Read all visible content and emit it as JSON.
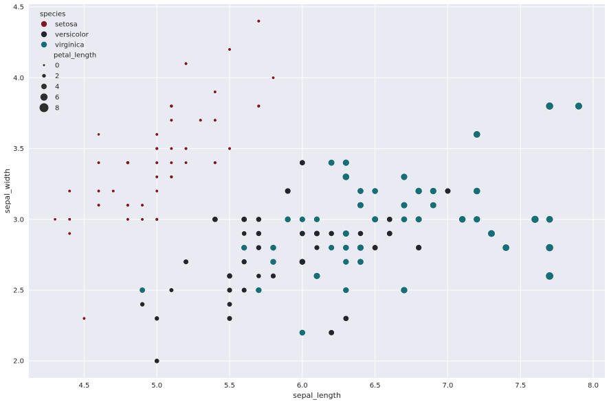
{
  "chart_data": {
    "type": "scatter",
    "xlabel": "sepal_length",
    "ylabel": "sepal_width",
    "xlim": [
      4.12,
      8.08
    ],
    "ylim": [
      1.88,
      4.52
    ],
    "xticks": [
      "4.5",
      "5.0",
      "5.5",
      "6.0",
      "6.5",
      "7.0",
      "7.5",
      "8.0"
    ],
    "yticks": [
      "2.0",
      "2.5",
      "3.0",
      "3.5",
      "4.0",
      "4.5"
    ],
    "grid": true,
    "background": "#eaeaf2",
    "legend": {
      "placement": "top-left",
      "hue_title": "species",
      "size_title": "petal_length",
      "size_entries": [
        "0",
        "2",
        "4",
        "6",
        "8"
      ]
    },
    "series": [
      {
        "name": "setosa",
        "color": "#7b1a23",
        "points": [
          {
            "x": 4.3,
            "y": 3.0,
            "s": 1.1
          },
          {
            "x": 4.4,
            "y": 2.9,
            "s": 1.4
          },
          {
            "x": 4.4,
            "y": 3.0,
            "s": 1.3
          },
          {
            "x": 4.4,
            "y": 3.2,
            "s": 1.3
          },
          {
            "x": 4.5,
            "y": 2.3,
            "s": 1.3
          },
          {
            "x": 4.6,
            "y": 3.1,
            "s": 1.5
          },
          {
            "x": 4.6,
            "y": 3.2,
            "s": 1.4
          },
          {
            "x": 4.6,
            "y": 3.4,
            "s": 1.4
          },
          {
            "x": 4.6,
            "y": 3.6,
            "s": 1.0
          },
          {
            "x": 4.7,
            "y": 3.2,
            "s": 1.3
          },
          {
            "x": 4.8,
            "y": 3.0,
            "s": 1.4
          },
          {
            "x": 4.8,
            "y": 3.1,
            "s": 1.6
          },
          {
            "x": 4.8,
            "y": 3.4,
            "s": 1.9
          },
          {
            "x": 4.9,
            "y": 3.0,
            "s": 1.4
          },
          {
            "x": 4.9,
            "y": 3.1,
            "s": 1.5
          },
          {
            "x": 5.0,
            "y": 3.0,
            "s": 1.6
          },
          {
            "x": 5.0,
            "y": 3.2,
            "s": 1.2
          },
          {
            "x": 5.0,
            "y": 3.3,
            "s": 1.4
          },
          {
            "x": 5.0,
            "y": 3.4,
            "s": 1.5
          },
          {
            "x": 5.0,
            "y": 3.5,
            "s": 1.6
          },
          {
            "x": 5.0,
            "y": 3.6,
            "s": 1.4
          },
          {
            "x": 5.1,
            "y": 3.3,
            "s": 1.7
          },
          {
            "x": 5.1,
            "y": 3.4,
            "s": 1.5
          },
          {
            "x": 5.1,
            "y": 3.5,
            "s": 1.4
          },
          {
            "x": 5.1,
            "y": 3.7,
            "s": 1.5
          },
          {
            "x": 5.1,
            "y": 3.8,
            "s": 1.9
          },
          {
            "x": 5.2,
            "y": 3.4,
            "s": 1.4
          },
          {
            "x": 5.2,
            "y": 3.5,
            "s": 1.5
          },
          {
            "x": 5.2,
            "y": 4.1,
            "s": 1.5
          },
          {
            "x": 5.3,
            "y": 3.7,
            "s": 1.5
          },
          {
            "x": 5.4,
            "y": 3.4,
            "s": 1.7
          },
          {
            "x": 5.4,
            "y": 3.7,
            "s": 1.5
          },
          {
            "x": 5.4,
            "y": 3.9,
            "s": 1.3
          },
          {
            "x": 5.5,
            "y": 3.5,
            "s": 1.3
          },
          {
            "x": 5.5,
            "y": 4.2,
            "s": 1.4
          },
          {
            "x": 5.7,
            "y": 3.8,
            "s": 1.7
          },
          {
            "x": 5.7,
            "y": 4.4,
            "s": 1.5
          },
          {
            "x": 5.8,
            "y": 4.0,
            "s": 1.2
          }
        ]
      },
      {
        "name": "versicolor",
        "color": "#22262f",
        "points": [
          {
            "x": 4.9,
            "y": 2.4,
            "s": 3.3
          },
          {
            "x": 5.0,
            "y": 2.0,
            "s": 3.5
          },
          {
            "x": 5.0,
            "y": 2.3,
            "s": 3.3
          },
          {
            "x": 5.1,
            "y": 2.5,
            "s": 3.0
          },
          {
            "x": 5.2,
            "y": 2.7,
            "s": 3.9
          },
          {
            "x": 5.4,
            "y": 3.0,
            "s": 4.5
          },
          {
            "x": 5.5,
            "y": 2.3,
            "s": 4.0
          },
          {
            "x": 5.5,
            "y": 2.4,
            "s": 3.7
          },
          {
            "x": 5.5,
            "y": 2.5,
            "s": 4.0
          },
          {
            "x": 5.5,
            "y": 2.6,
            "s": 4.4
          },
          {
            "x": 5.6,
            "y": 2.5,
            "s": 3.9
          },
          {
            "x": 5.6,
            "y": 2.7,
            "s": 4.2
          },
          {
            "x": 5.6,
            "y": 2.9,
            "s": 3.6
          },
          {
            "x": 5.6,
            "y": 3.0,
            "s": 4.5
          },
          {
            "x": 5.7,
            "y": 2.6,
            "s": 3.5
          },
          {
            "x": 5.7,
            "y": 2.8,
            "s": 4.1
          },
          {
            "x": 5.7,
            "y": 2.9,
            "s": 4.2
          },
          {
            "x": 5.7,
            "y": 3.0,
            "s": 4.2
          },
          {
            "x": 5.8,
            "y": 2.6,
            "s": 4.0
          },
          {
            "x": 5.8,
            "y": 2.7,
            "s": 4.1
          },
          {
            "x": 5.9,
            "y": 3.2,
            "s": 4.8
          },
          {
            "x": 6.0,
            "y": 2.7,
            "s": 5.1
          },
          {
            "x": 6.0,
            "y": 2.9,
            "s": 4.5
          },
          {
            "x": 6.0,
            "y": 3.4,
            "s": 4.5
          },
          {
            "x": 6.1,
            "y": 2.8,
            "s": 4.0
          },
          {
            "x": 6.1,
            "y": 2.9,
            "s": 4.7
          },
          {
            "x": 6.1,
            "y": 3.0,
            "s": 4.6
          },
          {
            "x": 6.2,
            "y": 2.2,
            "s": 4.5
          },
          {
            "x": 6.2,
            "y": 2.9,
            "s": 4.3
          },
          {
            "x": 6.3,
            "y": 2.3,
            "s": 4.4
          },
          {
            "x": 6.3,
            "y": 2.5,
            "s": 4.9
          },
          {
            "x": 6.3,
            "y": 3.3,
            "s": 4.7
          },
          {
            "x": 6.4,
            "y": 2.9,
            "s": 4.3
          },
          {
            "x": 6.4,
            "y": 3.2,
            "s": 4.5
          },
          {
            "x": 6.5,
            "y": 2.8,
            "s": 4.6
          },
          {
            "x": 6.6,
            "y": 2.9,
            "s": 4.6
          },
          {
            "x": 6.6,
            "y": 3.0,
            "s": 4.4
          },
          {
            "x": 6.7,
            "y": 3.1,
            "s": 4.4
          },
          {
            "x": 6.8,
            "y": 2.8,
            "s": 4.8
          },
          {
            "x": 7.0,
            "y": 3.2,
            "s": 4.7
          }
        ]
      },
      {
        "name": "virginica",
        "color": "#176e76",
        "points": [
          {
            "x": 4.9,
            "y": 2.5,
            "s": 4.5
          },
          {
            "x": 5.6,
            "y": 2.8,
            "s": 4.9
          },
          {
            "x": 5.7,
            "y": 2.5,
            "s": 5.0
          },
          {
            "x": 5.8,
            "y": 2.7,
            "s": 5.1
          },
          {
            "x": 5.8,
            "y": 2.8,
            "s": 5.1
          },
          {
            "x": 5.9,
            "y": 3.0,
            "s": 5.1
          },
          {
            "x": 6.0,
            "y": 2.2,
            "s": 5.0
          },
          {
            "x": 6.0,
            "y": 3.0,
            "s": 4.8
          },
          {
            "x": 6.1,
            "y": 2.6,
            "s": 5.6
          },
          {
            "x": 6.1,
            "y": 3.0,
            "s": 4.9
          },
          {
            "x": 6.2,
            "y": 2.8,
            "s": 4.8
          },
          {
            "x": 6.2,
            "y": 3.4,
            "s": 5.4
          },
          {
            "x": 6.3,
            "y": 2.5,
            "s": 5.0
          },
          {
            "x": 6.3,
            "y": 2.7,
            "s": 4.9
          },
          {
            "x": 6.3,
            "y": 2.8,
            "s": 5.1
          },
          {
            "x": 6.3,
            "y": 2.9,
            "s": 5.6
          },
          {
            "x": 6.3,
            "y": 3.3,
            "s": 6.0
          },
          {
            "x": 6.3,
            "y": 3.4,
            "s": 5.6
          },
          {
            "x": 6.4,
            "y": 2.7,
            "s": 5.3
          },
          {
            "x": 6.4,
            "y": 2.8,
            "s": 5.6
          },
          {
            "x": 6.4,
            "y": 3.1,
            "s": 5.5
          },
          {
            "x": 6.4,
            "y": 3.2,
            "s": 5.3
          },
          {
            "x": 6.5,
            "y": 3.0,
            "s": 5.5
          },
          {
            "x": 6.5,
            "y": 3.2,
            "s": 5.1
          },
          {
            "x": 6.7,
            "y": 2.5,
            "s": 5.8
          },
          {
            "x": 6.7,
            "y": 3.0,
            "s": 5.2
          },
          {
            "x": 6.7,
            "y": 3.1,
            "s": 5.6
          },
          {
            "x": 6.7,
            "y": 3.3,
            "s": 5.7
          },
          {
            "x": 6.8,
            "y": 3.0,
            "s": 5.5
          },
          {
            "x": 6.8,
            "y": 3.2,
            "s": 5.9
          },
          {
            "x": 6.9,
            "y": 3.1,
            "s": 5.4
          },
          {
            "x": 6.9,
            "y": 3.2,
            "s": 5.7
          },
          {
            "x": 7.1,
            "y": 3.0,
            "s": 5.9
          },
          {
            "x": 7.2,
            "y": 3.0,
            "s": 5.8
          },
          {
            "x": 7.2,
            "y": 3.2,
            "s": 6.0
          },
          {
            "x": 7.2,
            "y": 3.6,
            "s": 6.1
          },
          {
            "x": 7.3,
            "y": 2.9,
            "s": 6.3
          },
          {
            "x": 7.4,
            "y": 2.8,
            "s": 6.1
          },
          {
            "x": 7.6,
            "y": 3.0,
            "s": 6.6
          },
          {
            "x": 7.7,
            "y": 2.6,
            "s": 6.9
          },
          {
            "x": 7.7,
            "y": 2.8,
            "s": 6.7
          },
          {
            "x": 7.7,
            "y": 3.0,
            "s": 6.1
          },
          {
            "x": 7.7,
            "y": 3.8,
            "s": 6.7
          },
          {
            "x": 7.9,
            "y": 3.8,
            "s": 6.4
          }
        ]
      }
    ]
  }
}
